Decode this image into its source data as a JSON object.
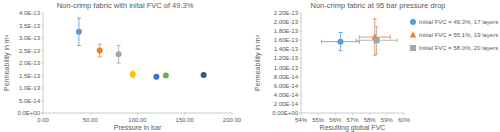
{
  "chart_data": [
    {
      "type": "scatter",
      "title": "Non-crimp fabric with inital FVC of 49.3%",
      "x_label": "Pressure in bar",
      "y_label": "Permeability in m²",
      "marker": "circle",
      "grid": false,
      "xlim": [
        0,
        200
      ],
      "xticks": [
        {
          "value": 0,
          "label": "0.00"
        },
        {
          "value": 50,
          "label": "50.00"
        },
        {
          "value": 100,
          "label": "100.00"
        },
        {
          "value": 150,
          "label": "150.00"
        },
        {
          "value": 200,
          "label": "200.00"
        }
      ],
      "ylim": [
        0,
        4e-13
      ],
      "yticks": [
        {
          "value": 0,
          "label": "0.0E+00"
        },
        {
          "value": 5e-14,
          "label": "5.0E-14"
        },
        {
          "value": 1e-13,
          "label": "1.0E-13"
        },
        {
          "value": 1.5e-13,
          "label": "1.5E-13"
        },
        {
          "value": 2e-13,
          "label": "2.0E-13"
        },
        {
          "value": 2.5e-13,
          "label": "2.5E-13"
        },
        {
          "value": 3e-13,
          "label": "3.0E-13"
        },
        {
          "value": 3.5e-13,
          "label": "3.5E-13"
        },
        {
          "value": 4e-13,
          "label": "4.0E-13"
        }
      ],
      "series": [
        {
          "colors": [
            "#5b9bd5",
            "#ed7d31",
            "#a5a5a5",
            "#ffc000",
            "#4472c4",
            "#70ad47",
            "#255e91"
          ],
          "x": [
            38,
            60,
            80,
            95,
            120,
            130,
            170
          ],
          "values": [
            3.25e-13,
            2.5e-13,
            2.35e-13,
            1.55e-13,
            1.45e-13,
            1.5e-13,
            1.52e-13
          ],
          "y_error": [
            5.5e-14,
            2.5e-14,
            3.5e-14,
            1.3e-14,
            8e-15,
            3e-15,
            2e-15
          ]
        }
      ]
    },
    {
      "type": "scatter",
      "title": "Non-crimp fabric at 95 bar pressure drop",
      "x_label": "Resulting global FVC",
      "y_label": "Permeability in m²",
      "grid": false,
      "legend": "right",
      "xlim": [
        54,
        60
      ],
      "xticks": [
        {
          "value": 54,
          "label": "54%"
        },
        {
          "value": 55,
          "label": "55%"
        },
        {
          "value": 56,
          "label": "56%"
        },
        {
          "value": 57,
          "label": "57%"
        },
        {
          "value": 58,
          "label": "58%"
        },
        {
          "value": 59,
          "label": "59%"
        },
        {
          "value": 60,
          "label": "60%"
        }
      ],
      "ylim": [
        0,
        2.2e-13
      ],
      "yticks": [
        {
          "value": 0,
          "label": "0.00E+00"
        },
        {
          "value": 2e-14,
          "label": "2.00E-14"
        },
        {
          "value": 4e-14,
          "label": "4.00E-14"
        },
        {
          "value": 6e-14,
          "label": "6.00E-14"
        },
        {
          "value": 8e-14,
          "label": "8.00E-14"
        },
        {
          "value": 1e-13,
          "label": "1.00E-13"
        },
        {
          "value": 1.2e-13,
          "label": "1.20E-13"
        },
        {
          "value": 1.4e-13,
          "label": "1.40E-13"
        },
        {
          "value": 1.6e-13,
          "label": "1.60E-13"
        },
        {
          "value": 1.8e-13,
          "label": "1.80E-13"
        },
        {
          "value": 2e-13,
          "label": "2.00E-13"
        },
        {
          "value": 2.2e-13,
          "label": "2.20E-13"
        }
      ],
      "series": [
        {
          "name": "Initial FVC = 49.3%, 17 layers",
          "color": "#5b9bd5",
          "marker": "circle",
          "x": [
            56.3
          ],
          "values": [
            1.57e-13
          ],
          "x_error": [
            1.1
          ],
          "y_error": [
            2e-14
          ]
        },
        {
          "name": "Initial FVC = 55.1%, 19 layers",
          "color": "#ed7d31",
          "marker": "triangle",
          "x": [
            58.3
          ],
          "values": [
            1.67e-13
          ],
          "x_error": [
            0.9
          ],
          "y_error": [
            4e-14
          ]
        },
        {
          "name": "Initial FVC = 58.0%, 20 layers",
          "color": "#a5a5a5",
          "marker": "square",
          "x": [
            58.4
          ],
          "values": [
            1.6e-13
          ],
          "x_error": [
            1.2
          ],
          "y_error": [
            3e-14
          ]
        }
      ]
    }
  ]
}
